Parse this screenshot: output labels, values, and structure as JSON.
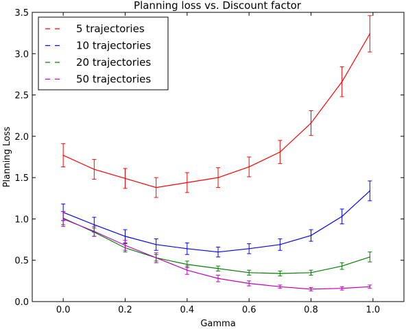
{
  "chart_data": {
    "type": "line",
    "title": "Planning loss vs. Discount factor",
    "xlabel": "Gamma",
    "ylabel": "Planning Loss",
    "xlim": [
      -0.1,
      1.1
    ],
    "ylim": [
      0.0,
      3.5
    ],
    "xticks": [
      "0.0",
      "0.2",
      "0.4",
      "0.6",
      "0.8",
      "1.0"
    ],
    "yticks": [
      "0.0",
      "0.5",
      "1.0",
      "1.5",
      "2.0",
      "2.5",
      "3.0",
      "3.5"
    ],
    "grid": false,
    "legend_position": "top-left",
    "x": [
      0.0,
      0.1,
      0.2,
      0.3,
      0.4,
      0.5,
      0.6,
      0.7,
      0.8,
      0.9,
      0.99
    ],
    "series": [
      {
        "name": "5 trajectories",
        "color": "#ff0000",
        "values": [
          1.77,
          1.6,
          1.49,
          1.38,
          1.44,
          1.5,
          1.63,
          1.81,
          2.16,
          2.66,
          3.24
        ],
        "errors": [
          0.14,
          0.12,
          0.12,
          0.12,
          0.12,
          0.12,
          0.12,
          0.14,
          0.15,
          0.18,
          0.22
        ]
      },
      {
        "name": "10 trajectories",
        "color": "#0000ff",
        "values": [
          1.08,
          0.93,
          0.79,
          0.69,
          0.64,
          0.6,
          0.64,
          0.69,
          0.8,
          1.03,
          1.34
        ],
        "errors": [
          0.1,
          0.09,
          0.08,
          0.07,
          0.07,
          0.06,
          0.06,
          0.07,
          0.07,
          0.09,
          0.12
        ]
      },
      {
        "name": "20 trajectories",
        "color": "#008000",
        "values": [
          1.01,
          0.84,
          0.65,
          0.53,
          0.45,
          0.4,
          0.35,
          0.34,
          0.35,
          0.43,
          0.54
        ],
        "errors": [
          0.08,
          0.05,
          0.05,
          0.04,
          0.04,
          0.03,
          0.03,
          0.03,
          0.03,
          0.04,
          0.06
        ]
      },
      {
        "name": "50 trajectories",
        "color": "#bf00bf",
        "values": [
          1.0,
          0.85,
          0.68,
          0.53,
          0.38,
          0.28,
          0.22,
          0.18,
          0.15,
          0.16,
          0.18
        ],
        "errors": [
          0.09,
          0.06,
          0.06,
          0.06,
          0.05,
          0.04,
          0.03,
          0.02,
          0.02,
          0.02,
          0.02
        ]
      }
    ]
  }
}
